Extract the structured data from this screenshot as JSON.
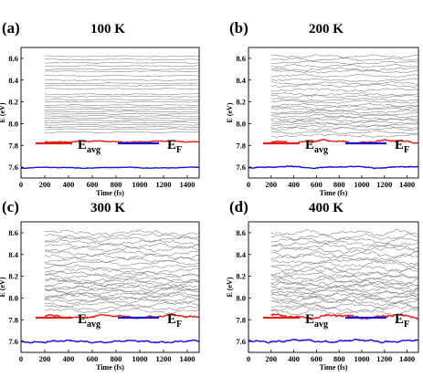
{
  "chart_data": [
    {
      "panel": "(a)",
      "title": "100 K",
      "type": "line",
      "xlabel": "Time (fs)",
      "ylabel": "E (eV)",
      "xlim": [
        0,
        1500
      ],
      "ylim": [
        7.5,
        8.7
      ],
      "xticks": [
        "0",
        "200",
        "400",
        "600",
        "800",
        "1000",
        "1200",
        "1400"
      ],
      "yticks": [
        "7.6",
        "7.8",
        "8.0",
        "8.2",
        "8.4",
        "8.6"
      ],
      "legend": [
        {
          "name": "E",
          "sub": "avg",
          "color": "#e0201b"
        },
        {
          "name": "E",
          "sub": "F",
          "color": "#1414d8"
        }
      ],
      "series": [
        {
          "name": "E_avg",
          "color": "#e0201b",
          "start": 200,
          "end": 1500,
          "baseline": 7.835,
          "noise": 0.008
        },
        {
          "name": "E_F",
          "color": "#1414d8",
          "start": 0,
          "end": 1500,
          "baseline": 7.595,
          "noise": 0.006
        }
      ],
      "state_levels": {
        "color": "#7f7f7f",
        "start": 200,
        "end": 1500,
        "noise": 0.006,
        "levels": [
          7.92,
          7.95,
          7.97,
          7.99,
          8.01,
          8.03,
          8.05,
          8.07,
          8.09,
          8.11,
          8.13,
          8.15,
          8.17,
          8.2,
          8.22,
          8.25,
          8.27,
          8.32,
          8.35,
          8.37,
          8.4,
          8.44,
          8.48,
          8.5,
          8.53,
          8.56,
          8.59,
          8.62
        ]
      }
    },
    {
      "panel": "(b)",
      "title": "200 K",
      "type": "line",
      "xlabel": "Time (fs)",
      "ylabel": "E (eV)",
      "xlim": [
        0,
        1500
      ],
      "ylim": [
        7.5,
        8.7
      ],
      "xticks": [
        "0",
        "200",
        "400",
        "600",
        "800",
        "1000",
        "1200",
        "1400"
      ],
      "yticks": [
        "7.6",
        "7.8",
        "8.0",
        "8.2",
        "8.4",
        "8.6"
      ],
      "legend": [
        {
          "name": "E",
          "sub": "avg",
          "color": "#e0201b"
        },
        {
          "name": "E",
          "sub": "F",
          "color": "#1414d8"
        }
      ],
      "series": [
        {
          "name": "E_avg",
          "color": "#e0201b",
          "start": 200,
          "end": 1500,
          "baseline": 7.835,
          "noise": 0.018
        },
        {
          "name": "E_F",
          "color": "#1414d8",
          "start": 0,
          "end": 1500,
          "baseline": 7.6,
          "noise": 0.011
        }
      ],
      "state_levels": {
        "color": "#7f7f7f",
        "start": 200,
        "end": 1500,
        "noise": 0.016,
        "levels": [
          7.89,
          7.92,
          7.95,
          7.97,
          7.99,
          8.01,
          8.03,
          8.05,
          8.07,
          8.09,
          8.11,
          8.13,
          8.15,
          8.17,
          8.2,
          8.22,
          8.25,
          8.27,
          8.31,
          8.35,
          8.37,
          8.4,
          8.44,
          8.48,
          8.5,
          8.53,
          8.56,
          8.59,
          8.62
        ]
      }
    },
    {
      "panel": "(c)",
      "title": "300 K",
      "type": "line",
      "xlabel": "Time (fs)",
      "ylabel": "E (eV)",
      "xlim": [
        0,
        1500
      ],
      "ylim": [
        7.5,
        8.7
      ],
      "xticks": [
        "0",
        "200",
        "400",
        "600",
        "800",
        "1000",
        "1200",
        "1400"
      ],
      "yticks": [
        "7.6",
        "7.8",
        "8.0",
        "8.2",
        "8.4",
        "8.6"
      ],
      "legend": [
        {
          "name": "E",
          "sub": "avg",
          "color": "#e0201b"
        },
        {
          "name": "E",
          "sub": "F",
          "color": "#1414d8"
        }
      ],
      "series": [
        {
          "name": "E_avg",
          "color": "#e0201b",
          "start": 200,
          "end": 1500,
          "baseline": 7.83,
          "noise": 0.02
        },
        {
          "name": "E_F",
          "color": "#1414d8",
          "start": 0,
          "end": 1500,
          "baseline": 7.6,
          "noise": 0.014
        }
      ],
      "state_levels": {
        "color": "#7f7f7f",
        "start": 200,
        "end": 1500,
        "noise": 0.026,
        "levels": [
          7.88,
          7.91,
          7.94,
          7.97,
          7.99,
          8.01,
          8.03,
          8.05,
          8.07,
          8.09,
          8.11,
          8.13,
          8.15,
          8.17,
          8.2,
          8.22,
          8.25,
          8.28,
          8.32,
          8.35,
          8.38,
          8.41,
          8.45,
          8.48,
          8.51,
          8.54,
          8.57,
          8.6
        ]
      }
    },
    {
      "panel": "(d)",
      "title": "400 K",
      "type": "line",
      "xlabel": "Time (fs)",
      "ylabel": "E (eV)",
      "xlim": [
        0,
        1500
      ],
      "ylim": [
        7.5,
        8.7
      ],
      "xticks": [
        "0",
        "200",
        "400",
        "600",
        "800",
        "1000",
        "1200",
        "1400"
      ],
      "yticks": [
        "7.6",
        "7.8",
        "8.0",
        "8.2",
        "8.4",
        "8.6"
      ],
      "legend": [
        {
          "name": "E",
          "sub": "avg",
          "color": "#e0201b"
        },
        {
          "name": "E",
          "sub": "F",
          "color": "#1414d8"
        }
      ],
      "series": [
        {
          "name": "E_avg",
          "color": "#e0201b",
          "start": 200,
          "end": 1500,
          "baseline": 7.83,
          "noise": 0.022
        },
        {
          "name": "E_F",
          "color": "#1414d8",
          "start": 0,
          "end": 1500,
          "baseline": 7.605,
          "noise": 0.016
        }
      ],
      "state_levels": {
        "color": "#7f7f7f",
        "start": 200,
        "end": 1500,
        "noise": 0.03,
        "levels": [
          7.87,
          7.9,
          7.93,
          7.96,
          7.98,
          8.0,
          8.02,
          8.04,
          8.06,
          8.08,
          8.1,
          8.12,
          8.14,
          8.16,
          8.19,
          8.21,
          8.24,
          8.27,
          8.31,
          8.34,
          8.37,
          8.4,
          8.44,
          8.47,
          8.5,
          8.53,
          8.56,
          8.6
        ]
      }
    }
  ]
}
